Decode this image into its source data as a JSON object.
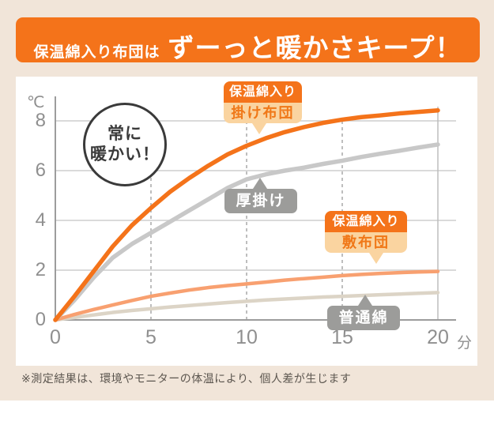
{
  "title": {
    "prefix": "保温綿入り布団は",
    "main": "ずーっと暖かさキープ！"
  },
  "bubble": {
    "line1": "常に",
    "line2": "暖かい！"
  },
  "callouts": {
    "kake": {
      "top": "保温綿入り",
      "bottom": "掛け布団"
    },
    "atsugake": "厚掛け",
    "shiki": {
      "top": "保温綿入り",
      "bottom": "敷布団"
    },
    "futsumen": "普通綿"
  },
  "footnote": "※測定結果は、環境やモニターの体温により、個人差が生じます",
  "colors": {
    "background_beige": "#F1E5D9",
    "banner_orange": "#F4731A",
    "peach": "#FAD4A0",
    "peach_text": "#F07818",
    "gray_label": "#9C9C9A",
    "grid": "#CDCDCD",
    "axis": "#9C9C9C",
    "tick_text": "#8F8F8F"
  },
  "chart_data": {
    "type": "line",
    "x_unit": "分",
    "y_unit": "℃",
    "x_ticks": [
      0,
      5,
      10,
      15,
      20
    ],
    "y_ticks": [
      0,
      2,
      4,
      6,
      8
    ],
    "xlim": [
      0,
      20
    ],
    "ylim": [
      0,
      8.6
    ],
    "grid": "horizontal solid, vertical dashed at 5/10/15",
    "series": [
      {
        "key": "futsumen",
        "name": "普通綿",
        "color": "#DCD4C6",
        "values": [
          [
            0,
            0
          ],
          [
            1,
            0.1
          ],
          [
            2,
            0.2
          ],
          [
            3,
            0.3
          ],
          [
            4,
            0.38
          ],
          [
            5,
            0.45
          ],
          [
            6,
            0.52
          ],
          [
            7,
            0.58
          ],
          [
            8,
            0.64
          ],
          [
            9,
            0.7
          ],
          [
            10,
            0.75
          ],
          [
            11,
            0.8
          ],
          [
            12,
            0.84
          ],
          [
            13,
            0.88
          ],
          [
            14,
            0.92
          ],
          [
            15,
            0.95
          ],
          [
            16,
            0.98
          ],
          [
            17,
            1.01
          ],
          [
            18,
            1.04
          ],
          [
            19,
            1.07
          ],
          [
            20,
            1.1
          ]
        ]
      },
      {
        "key": "shiki",
        "name": "保温綿入り 敷布団",
        "color": "#F8A070",
        "values": [
          [
            0,
            0
          ],
          [
            1,
            0.22
          ],
          [
            2,
            0.42
          ],
          [
            3,
            0.6
          ],
          [
            4,
            0.78
          ],
          [
            5,
            0.95
          ],
          [
            6,
            1.08
          ],
          [
            7,
            1.2
          ],
          [
            8,
            1.3
          ],
          [
            9,
            1.38
          ],
          [
            10,
            1.45
          ],
          [
            11,
            1.52
          ],
          [
            12,
            1.6
          ],
          [
            13,
            1.66
          ],
          [
            14,
            1.72
          ],
          [
            15,
            1.78
          ],
          [
            16,
            1.83
          ],
          [
            17,
            1.87
          ],
          [
            18,
            1.9
          ],
          [
            19,
            1.93
          ],
          [
            20,
            1.95
          ]
        ]
      },
      {
        "key": "atsugake",
        "name": "厚掛け",
        "color": "#C8C8C8",
        "values": [
          [
            0,
            0
          ],
          [
            1,
            0.8
          ],
          [
            2,
            1.7
          ],
          [
            3,
            2.5
          ],
          [
            4,
            3.05
          ],
          [
            5,
            3.5
          ],
          [
            6,
            3.95
          ],
          [
            7,
            4.4
          ],
          [
            8,
            4.85
          ],
          [
            9,
            5.3
          ],
          [
            10,
            5.65
          ],
          [
            11,
            5.85
          ],
          [
            12,
            6.0
          ],
          [
            13,
            6.12
          ],
          [
            14,
            6.27
          ],
          [
            15,
            6.4
          ],
          [
            16,
            6.55
          ],
          [
            17,
            6.68
          ],
          [
            18,
            6.8
          ],
          [
            19,
            6.93
          ],
          [
            20,
            7.05
          ]
        ]
      },
      {
        "key": "kake",
        "name": "保温綿入り 掛け布団",
        "color": "#F4731A",
        "values": [
          [
            0,
            0
          ],
          [
            1,
            0.95
          ],
          [
            2,
            1.95
          ],
          [
            3,
            2.95
          ],
          [
            4,
            3.8
          ],
          [
            5,
            4.5
          ],
          [
            6,
            5.15
          ],
          [
            7,
            5.7
          ],
          [
            8,
            6.2
          ],
          [
            9,
            6.65
          ],
          [
            10,
            7.0
          ],
          [
            11,
            7.3
          ],
          [
            12,
            7.55
          ],
          [
            13,
            7.75
          ],
          [
            14,
            7.92
          ],
          [
            15,
            8.05
          ],
          [
            16,
            8.15
          ],
          [
            17,
            8.22
          ],
          [
            18,
            8.3
          ],
          [
            19,
            8.36
          ],
          [
            20,
            8.42
          ]
        ]
      }
    ]
  }
}
